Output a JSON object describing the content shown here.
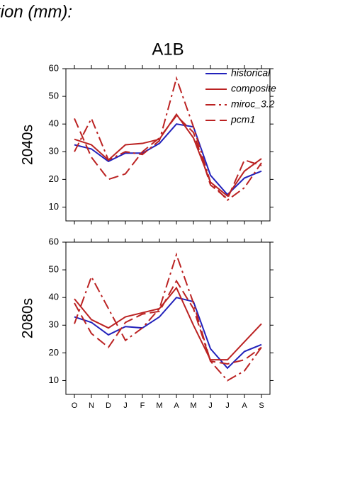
{
  "page_title": "tion (mm):",
  "chart_data": [
    {
      "type": "line",
      "title": "A1B",
      "ylabel": "2040s",
      "ylim": [
        5,
        60
      ],
      "yticks": [
        10,
        20,
        30,
        40,
        50,
        60
      ],
      "legend": "upper right",
      "series": [
        {
          "name": "historical",
          "color": "#2222bb",
          "style": "solid",
          "values": [
            32.5,
            31,
            26.5,
            29.5,
            29.5,
            33,
            40,
            39,
            21.5,
            14.5,
            20.5,
            23
          ]
        },
        {
          "name": "composite",
          "color": "#bb2222",
          "style": "solid",
          "values": [
            34.5,
            32.5,
            27,
            32.5,
            33,
            34.5,
            43.5,
            35,
            19,
            14,
            23,
            27.5
          ]
        },
        {
          "name": "miroc_3.2",
          "color": "#bb2222",
          "style": "dashdot",
          "values": [
            30,
            42,
            27,
            30,
            29,
            34,
            56.5,
            39,
            19,
            12.5,
            17,
            26
          ]
        },
        {
          "name": "pcm1",
          "color": "#bb2222",
          "style": "dash",
          "values": [
            42,
            28,
            20,
            22,
            30,
            35,
            43,
            37,
            18,
            13,
            27,
            25
          ]
        }
      ]
    },
    {
      "type": "line",
      "ylabel": "2080s",
      "ylim": [
        5,
        60
      ],
      "yticks": [
        10,
        20,
        30,
        40,
        50,
        60
      ],
      "categories": [
        "O",
        "N",
        "D",
        "J",
        "F",
        "M",
        "A",
        "M",
        "J",
        "J",
        "A",
        "S"
      ],
      "series": [
        {
          "color": "#2222bb",
          "style": "solid",
          "values": [
            33,
            31,
            26.5,
            29.5,
            29,
            33,
            40,
            38.5,
            21.5,
            14.5,
            20.5,
            23
          ]
        },
        {
          "color": "#bb2222",
          "style": "solid",
          "values": [
            39.5,
            32,
            29,
            33,
            34.5,
            36,
            43.5,
            30,
            17.5,
            17.5,
            24,
            30.5
          ]
        },
        {
          "color": "#bb2222",
          "style": "dashdot",
          "values": [
            30.5,
            47.5,
            36,
            24.5,
            29,
            36,
            55.5,
            38,
            17,
            10,
            13.5,
            22
          ]
        },
        {
          "color": "#bb2222",
          "style": "dash",
          "values": [
            38,
            27,
            22,
            31,
            34,
            35,
            46,
            36,
            17,
            16,
            17.5,
            22
          ]
        }
      ]
    }
  ]
}
